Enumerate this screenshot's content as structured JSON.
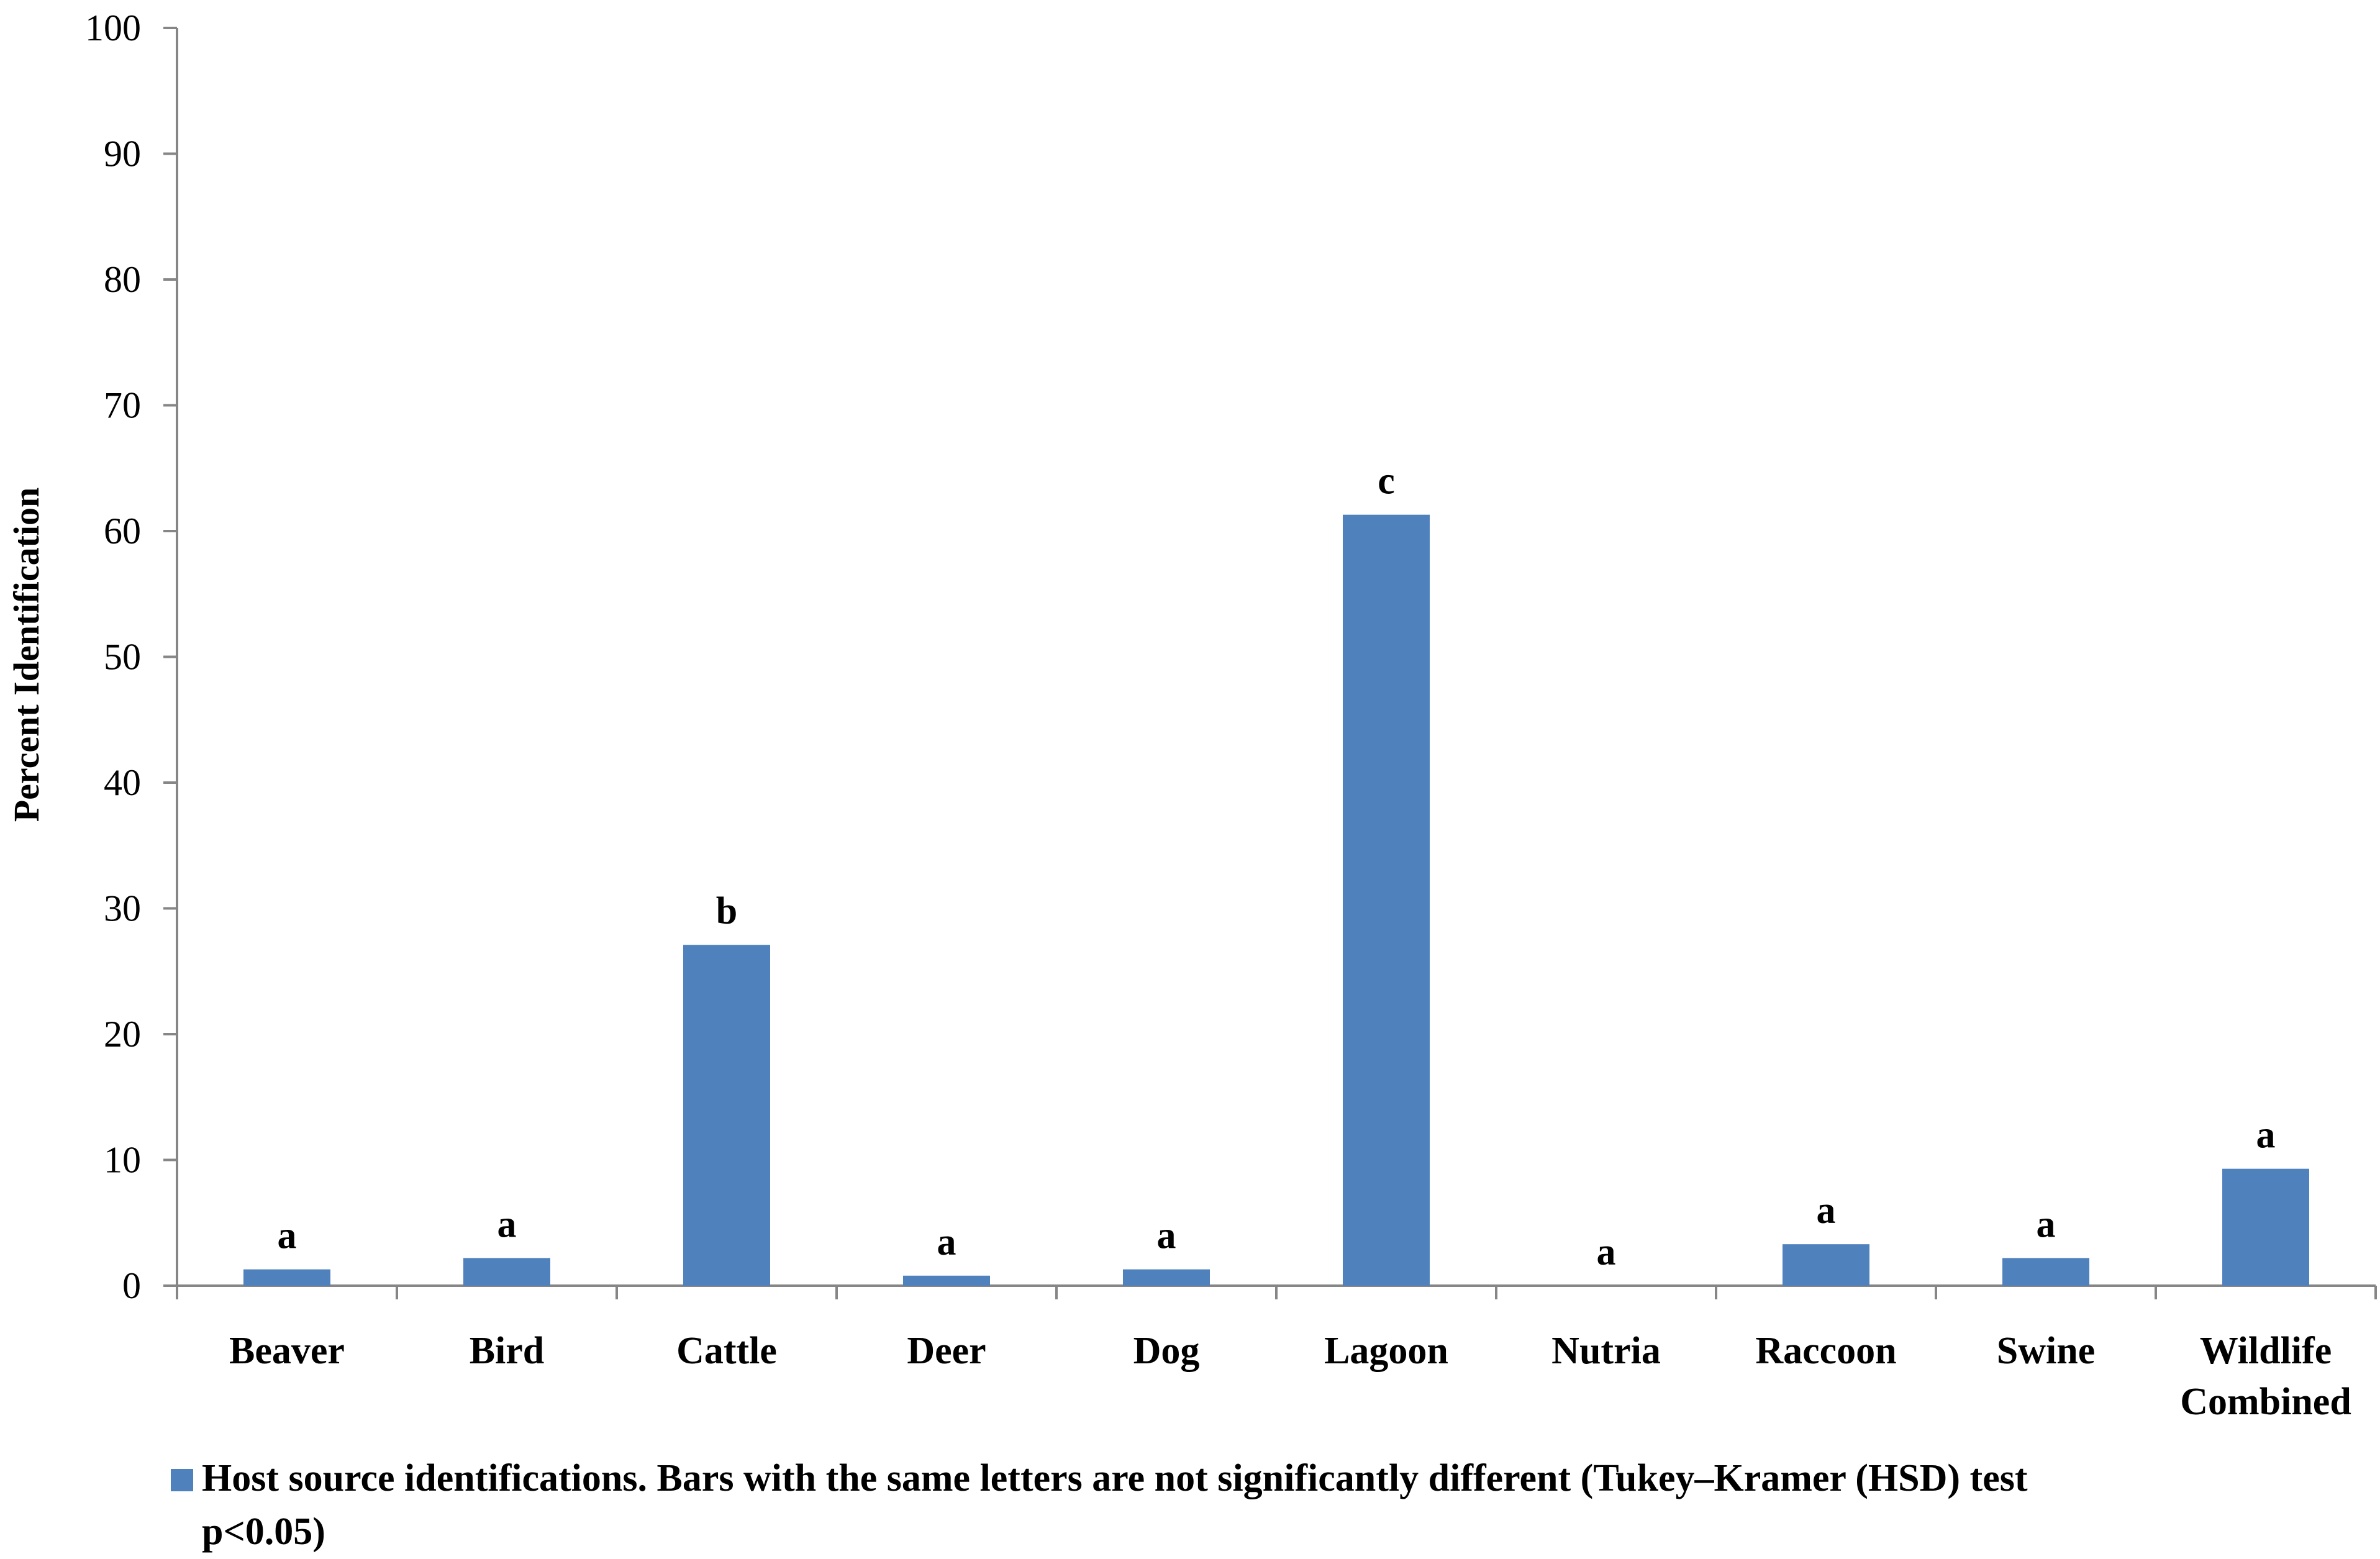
{
  "chart_data": {
    "type": "bar",
    "categories": [
      [
        "Beaver"
      ],
      [
        "Bird"
      ],
      [
        "Cattle"
      ],
      [
        "Deer"
      ],
      [
        "Dog"
      ],
      [
        "Lagoon"
      ],
      [
        "Nutria"
      ],
      [
        "Raccoon"
      ],
      [
        "Swine"
      ],
      [
        "Wildlife",
        "Combined"
      ]
    ],
    "series": [
      {
        "name": "Host source identifications.  Bars with the same letters are not significantly different (Tukey–Kramer (HSD) test p<0.05)",
        "values": [
          1.3,
          2.2,
          27.1,
          0.8,
          1.3,
          61.3,
          0.0,
          3.3,
          2.2,
          9.3
        ],
        "color": "#4f81bd"
      }
    ],
    "significance_letters": [
      "a",
      "a",
      "b",
      "a",
      "a",
      "c",
      "a",
      "a",
      "a",
      "a"
    ],
    "ylabel": "Percent Identification",
    "xlabel": "",
    "ylim": [
      0,
      100
    ],
    "yticks": [
      0,
      10,
      20,
      30,
      40,
      50,
      60,
      70,
      80,
      90,
      100
    ],
    "grid": false,
    "legend": {
      "placement": "bottom",
      "lines": [
        "Host source identifications.  Bars with the same letters are not significantly different (Tukey–Kramer (HSD) test",
        "p<0.05)"
      ]
    }
  }
}
